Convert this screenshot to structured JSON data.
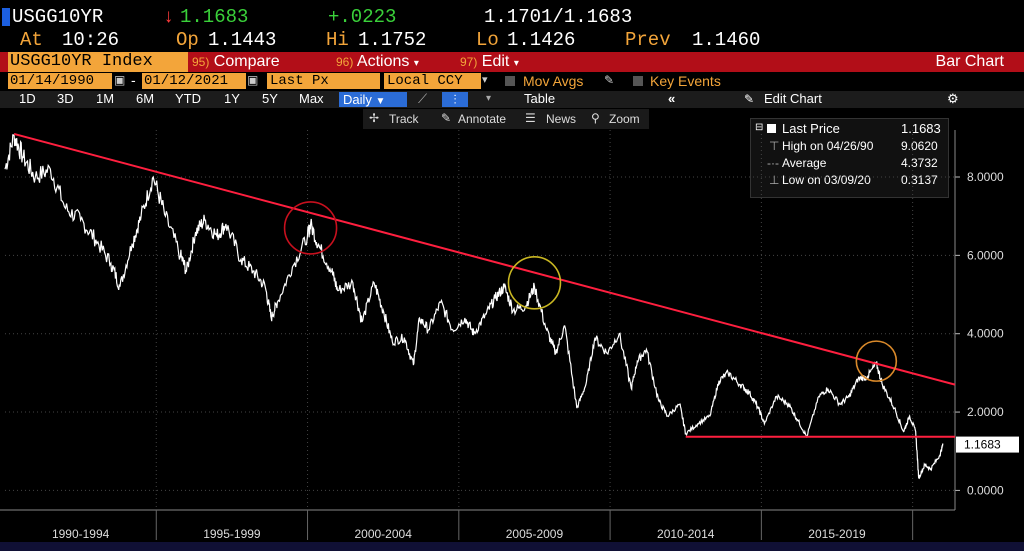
{
  "header": {
    "ticker": "USGG10YR",
    "last_arrow": "↓",
    "last": "1.1683",
    "change": "+.0223",
    "bid_ask": "1.1701/1.1683",
    "at_label": "At",
    "time": "10:26",
    "open_label": "Op",
    "open": "1.1443",
    "high_label": "Hi",
    "high": "1.1752",
    "low_label": "Lo",
    "low": "1.1426",
    "prev_label": "Prev",
    "prev": "1.1460"
  },
  "toolbar": {
    "security": "USGG10YR Index",
    "compare_num": "95)",
    "compare_label": "Compare",
    "actions_num": "96)",
    "actions_label": "Actions",
    "edit_num": "97)",
    "edit_label": "Edit",
    "view_title": "Bar Chart"
  },
  "controls": {
    "start_date": "01/14/1990",
    "end_date": "01/12/2021",
    "field": "Last Px",
    "currency": "Local CCY",
    "mov_avgs": "Mov Avgs",
    "key_events": "Key Events"
  },
  "periods": [
    "1D",
    "3D",
    "1M",
    "6M",
    "YTD",
    "1Y",
    "5Y",
    "Max"
  ],
  "frequency": "Daily",
  "table_label": "Table",
  "edit_chart_label": "Edit Chart",
  "tools": {
    "track": "Track",
    "annotate": "Annotate",
    "news": "News",
    "zoom": "Zoom"
  },
  "legend": {
    "last_label": "Last Price",
    "last_value": "1.1683",
    "high_label": "High on 04/26/90",
    "high_value": "9.0620",
    "avg_label": "Average",
    "avg_value": "4.3732",
    "low_label": "Low on 03/09/20",
    "low_value": "0.3137"
  },
  "colors": {
    "accent": "#f3a53a",
    "brand_red": "#b20e18",
    "up": "#3ad13a",
    "down": "#ff3b3b",
    "trendline": "#ff1f3f"
  },
  "chart_data": {
    "type": "line",
    "x_tick_labels": [
      "1990-1994",
      "1995-1999",
      "2000-2004",
      "2005-2009",
      "2010-2014",
      "2015-2019"
    ],
    "y_ticks": [
      "0.0000",
      "2.0000",
      "4.0000",
      "6.0000",
      "8.0000"
    ],
    "ylim": [
      -0.5,
      9.2
    ],
    "xlim": [
      1990.0,
      2021.4
    ],
    "last_value_label": "1.1683",
    "series": [
      {
        "values": [
          [
            1990.0,
            8.2
          ],
          [
            1990.3,
            9.06
          ],
          [
            1990.6,
            8.5
          ],
          [
            1991.0,
            8.0
          ],
          [
            1991.5,
            8.2
          ],
          [
            1992.0,
            7.2
          ],
          [
            1992.5,
            6.9
          ],
          [
            1993.0,
            6.4
          ],
          [
            1993.5,
            5.8
          ],
          [
            1993.8,
            5.2
          ],
          [
            1994.2,
            6.3
          ],
          [
            1994.5,
            7.0
          ],
          [
            1994.9,
            8.0
          ],
          [
            1995.3,
            7.0
          ],
          [
            1995.8,
            6.0
          ],
          [
            1996.0,
            5.6
          ],
          [
            1996.3,
            6.6
          ],
          [
            1996.6,
            6.9
          ],
          [
            1997.0,
            6.5
          ],
          [
            1997.3,
            6.8
          ],
          [
            1997.8,
            5.9
          ],
          [
            1998.2,
            5.6
          ],
          [
            1998.6,
            5.2
          ],
          [
            1998.8,
            4.4
          ],
          [
            1999.0,
            4.8
          ],
          [
            1999.5,
            5.7
          ],
          [
            2000.0,
            6.5
          ],
          [
            2000.1,
            6.79
          ],
          [
            2000.4,
            6.2
          ],
          [
            2000.8,
            5.6
          ],
          [
            2001.0,
            5.1
          ],
          [
            2001.5,
            5.3
          ],
          [
            2001.8,
            4.3
          ],
          [
            2002.2,
            5.3
          ],
          [
            2002.5,
            4.6
          ],
          [
            2002.8,
            3.8
          ],
          [
            2003.2,
            3.9
          ],
          [
            2003.5,
            3.2
          ],
          [
            2003.7,
            4.4
          ],
          [
            2004.0,
            4.1
          ],
          [
            2004.4,
            4.8
          ],
          [
            2004.8,
            4.1
          ],
          [
            2005.2,
            4.4
          ],
          [
            2005.5,
            4.0
          ],
          [
            2005.9,
            4.5
          ],
          [
            2006.2,
            4.9
          ],
          [
            2006.5,
            5.2
          ],
          [
            2006.8,
            4.6
          ],
          [
            2007.2,
            4.7
          ],
          [
            2007.5,
            5.2
          ],
          [
            2007.9,
            4.1
          ],
          [
            2008.2,
            3.5
          ],
          [
            2008.5,
            4.2
          ],
          [
            2008.9,
            2.1
          ],
          [
            2009.2,
            2.7
          ],
          [
            2009.5,
            3.9
          ],
          [
            2009.9,
            3.5
          ],
          [
            2010.3,
            4.0
          ],
          [
            2010.7,
            2.6
          ],
          [
            2010.9,
            3.3
          ],
          [
            2011.2,
            3.6
          ],
          [
            2011.6,
            2.3
          ],
          [
            2011.9,
            1.9
          ],
          [
            2012.3,
            2.2
          ],
          [
            2012.5,
            1.45
          ],
          [
            2012.9,
            1.7
          ],
          [
            2013.3,
            1.9
          ],
          [
            2013.6,
            2.8
          ],
          [
            2013.9,
            3.0
          ],
          [
            2014.3,
            2.7
          ],
          [
            2014.6,
            2.5
          ],
          [
            2014.9,
            2.1
          ],
          [
            2015.1,
            1.7
          ],
          [
            2015.5,
            2.4
          ],
          [
            2015.9,
            2.2
          ],
          [
            2016.2,
            1.8
          ],
          [
            2016.5,
            1.37
          ],
          [
            2016.9,
            2.4
          ],
          [
            2017.2,
            2.6
          ],
          [
            2017.6,
            2.2
          ],
          [
            2017.9,
            2.4
          ],
          [
            2018.2,
            2.85
          ],
          [
            2018.5,
            2.9
          ],
          [
            2018.8,
            3.24
          ],
          [
            2019.0,
            2.7
          ],
          [
            2019.4,
            2.1
          ],
          [
            2019.7,
            1.5
          ],
          [
            2019.9,
            1.9
          ],
          [
            2020.1,
            1.5
          ],
          [
            2020.2,
            0.32
          ],
          [
            2020.4,
            0.65
          ],
          [
            2020.6,
            0.55
          ],
          [
            2020.9,
            0.9
          ],
          [
            2021.0,
            1.17
          ]
        ]
      }
    ],
    "annotations": {
      "trendline": {
        "from": [
          1990.3,
          9.1
        ],
        "to": [
          2021.4,
          2.7
        ]
      },
      "support_line": {
        "from": [
          2012.5,
          1.37
        ],
        "to": [
          2021.4,
          1.37
        ]
      },
      "circles": [
        {
          "x": 2000.1,
          "y": 6.7,
          "color": "#c8101e"
        },
        {
          "x": 2007.5,
          "y": 5.3,
          "color": "#c9b722"
        },
        {
          "x": 2018.8,
          "y": 3.3,
          "color": "#d9892a"
        }
      ]
    }
  }
}
